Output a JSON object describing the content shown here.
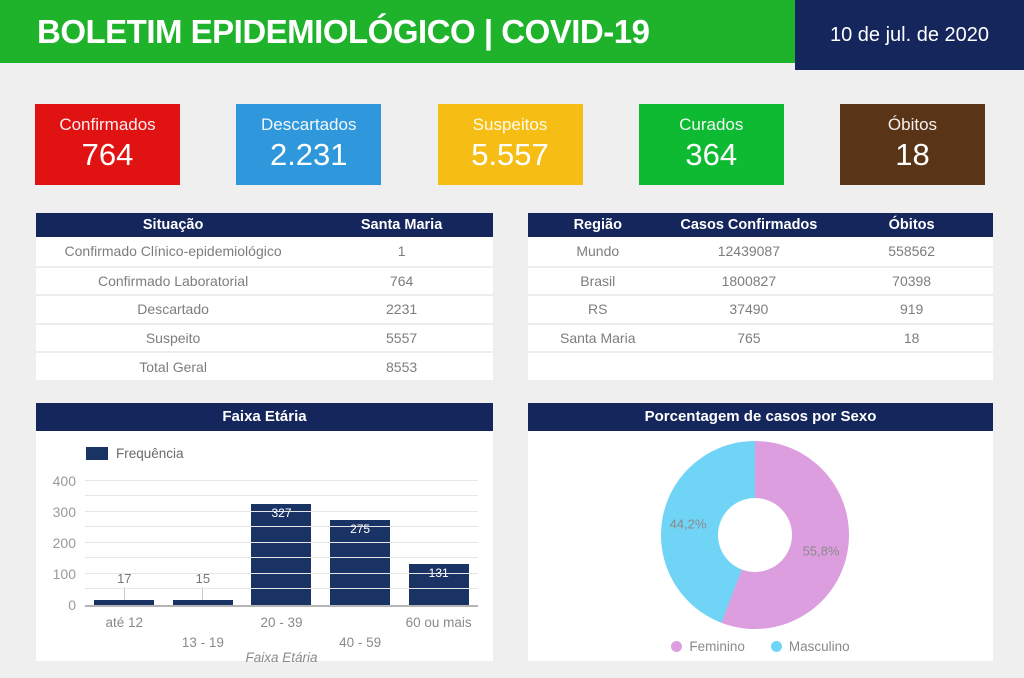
{
  "theme": {
    "page_bg": "#efefef",
    "green": "#1eb32b",
    "navy": "#14265c",
    "bar": "#1a3365"
  },
  "header": {
    "title": "BOLETIM EPIDEMIOLÓGICO | COVID-19",
    "date": "10 de jul. de 2020"
  },
  "cards": [
    {
      "label": "Confirmados",
      "value": "764",
      "color": "#e01212"
    },
    {
      "label": "Descartados",
      "value": "2.231",
      "color": "#2f97db"
    },
    {
      "label": "Suspeitos",
      "value": "5.557",
      "color": "#f6be15"
    },
    {
      "label": "Curados",
      "value": "364",
      "color": "#0eba32"
    },
    {
      "label": "Óbitos",
      "value": "18",
      "color": "#5a3416"
    }
  ],
  "situacao_table": {
    "headers": [
      "Situação",
      "Santa Maria"
    ],
    "rows": [
      [
        "Confirmado Clínico-epidemiológico",
        "1"
      ],
      [
        "Confirmado Laboratorial",
        "764"
      ],
      [
        "Descartado",
        "2231"
      ],
      [
        "Suspeito",
        "5557"
      ],
      [
        "Total Geral",
        "8553"
      ]
    ]
  },
  "regiao_table": {
    "headers": [
      "Região",
      "Casos Confirmados",
      "Óbitos"
    ],
    "rows": [
      [
        "Mundo",
        "12439087",
        "558562"
      ],
      [
        "Brasil",
        "1800827",
        "70398"
      ],
      [
        "RS",
        "37490",
        "919"
      ],
      [
        "Santa Maria",
        "765",
        "18"
      ]
    ]
  },
  "chart_data": [
    {
      "type": "bar",
      "title": "Faixa Etária",
      "legend": "Frequência",
      "categories": [
        "até 12",
        "13 - 19",
        "20 - 39",
        "40 - 59",
        "60 ou mais"
      ],
      "values": [
        17,
        15,
        327,
        275,
        131
      ],
      "xlabel": "Faixa Etária",
      "ylabel": "",
      "ylim": [
        0,
        450
      ],
      "yticks": [
        0,
        100,
        200,
        300,
        400
      ],
      "grid": "on",
      "grid_step": 50,
      "bar_color": "#1a3365",
      "legend_position": "top-left"
    },
    {
      "type": "pie",
      "title": "Porcentagem de casos por Sexo",
      "labels": [
        "Feminino",
        "Masculino"
      ],
      "values": [
        55.8,
        44.2
      ],
      "value_labels": [
        "55,8%",
        "44,2%"
      ],
      "colors": [
        "#dd9ee0",
        "#70d4f6"
      ],
      "donut": true,
      "legend_position": "bottom"
    }
  ]
}
